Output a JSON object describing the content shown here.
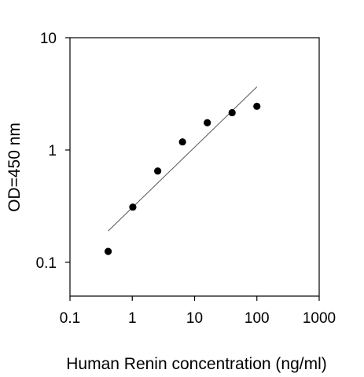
{
  "chart_data": {
    "type": "scatter",
    "title": "",
    "xlabel": "Human Renin concentration (ng/ml)",
    "ylabel": "OD=450 nm",
    "x_scale": "log",
    "y_scale": "log",
    "xlim": [
      0.1,
      1000
    ],
    "ylim": [
      0.05,
      10
    ],
    "x_ticks": [
      0.1,
      1,
      10,
      100,
      1000
    ],
    "x_tick_labels": [
      "0.1",
      "1",
      "10",
      "100",
      "1000"
    ],
    "y_ticks": [
      0.1,
      1,
      10
    ],
    "y_tick_labels": [
      "0.1",
      "1",
      "10"
    ],
    "grid": false,
    "legend": "none",
    "series": [
      {
        "type": "scatter",
        "x": [
          0.41,
          1.02,
          2.56,
          6.4,
          16,
          40,
          100
        ],
        "y": [
          0.125,
          0.31,
          0.65,
          1.18,
          1.75,
          2.15,
          2.45
        ]
      },
      {
        "type": "line",
        "x": [
          0.41,
          100
        ],
        "y": [
          0.19,
          3.65
        ]
      }
    ],
    "colors": {
      "points": "#000000",
      "fit_line": "#555555",
      "axes": "#000000"
    }
  }
}
